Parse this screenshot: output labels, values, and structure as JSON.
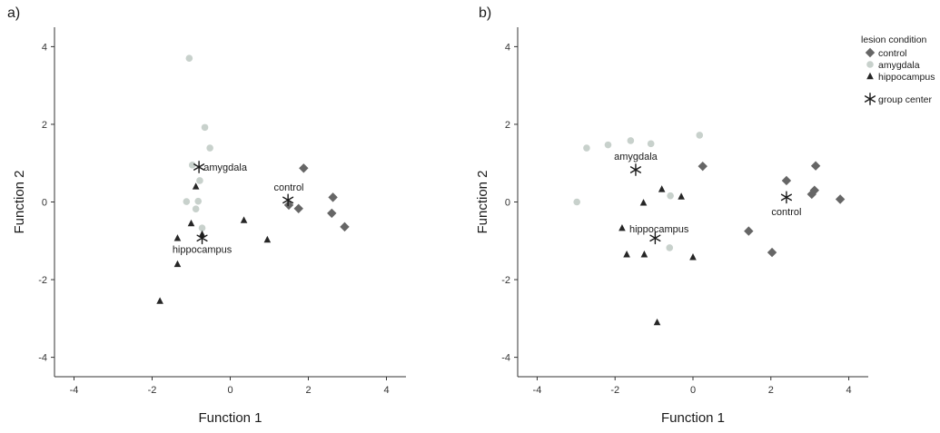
{
  "colors": {
    "control": "#666666",
    "amygdala": "#c8d1cc",
    "hippocampus": "#262626",
    "group_center": "#1a1a1a",
    "axis": "#333333"
  },
  "legend": {
    "title": "lesion condition",
    "items": [
      {
        "label": "control",
        "marker": "diamond",
        "color_key": "control"
      },
      {
        "label": "amygdala",
        "marker": "circle",
        "color_key": "amygdala"
      },
      {
        "label": "hippocampus",
        "marker": "triangle",
        "color_key": "hippocampus"
      },
      {
        "label": "group center",
        "marker": "star",
        "color_key": "group_center"
      }
    ],
    "placement": "right of panel b, top"
  },
  "chart_data": [
    {
      "panel_label": "a)",
      "type": "scatter",
      "xlabel": "Function 1",
      "ylabel": "Function 2",
      "xlim": [
        -4.5,
        4.5
      ],
      "ylim": [
        -4.5,
        4.5
      ],
      "xticks": [
        -4,
        -2,
        0,
        2,
        4
      ],
      "yticks": [
        -4,
        -2,
        0,
        2,
        4
      ],
      "grid": false,
      "series": [
        {
          "name": "control",
          "marker": "diamond",
          "points": [
            [
              1.88,
              0.87
            ],
            [
              2.63,
              0.12
            ],
            [
              1.5,
              -0.08
            ],
            [
              1.75,
              -0.17
            ],
            [
              2.6,
              -0.29
            ],
            [
              2.93,
              -0.64
            ]
          ]
        },
        {
          "name": "amygdala",
          "marker": "circle",
          "points": [
            [
              -1.05,
              3.7
            ],
            [
              -0.65,
              1.92
            ],
            [
              -0.52,
              1.39
            ],
            [
              -0.97,
              0.95
            ],
            [
              -0.78,
              0.55
            ],
            [
              -1.12,
              0.01
            ],
            [
              -0.82,
              0.02
            ],
            [
              -0.88,
              -0.18
            ],
            [
              -0.72,
              -0.67
            ]
          ]
        },
        {
          "name": "hippocampus",
          "marker": "triangle",
          "points": [
            [
              -0.88,
              0.4
            ],
            [
              -1.0,
              -0.55
            ],
            [
              0.35,
              -0.47
            ],
            [
              -0.72,
              -0.83
            ],
            [
              -1.35,
              -0.93
            ],
            [
              0.95,
              -0.97
            ],
            [
              -1.35,
              -1.6
            ],
            [
              -1.8,
              -2.55
            ]
          ]
        },
        {
          "name": "group center",
          "marker": "star",
          "points": [
            [
              -0.8,
              0.9
            ],
            [
              1.48,
              0.05
            ],
            [
              -0.72,
              -0.93
            ]
          ]
        }
      ],
      "annotations": [
        {
          "text": "amygdala",
          "x": -0.68,
          "y": 0.9,
          "anchor": "start"
        },
        {
          "text": "control",
          "x": 1.5,
          "y": 0.38,
          "anchor": "middle"
        },
        {
          "text": "hippocampus",
          "x": -0.72,
          "y": -1.22,
          "anchor": "middle"
        }
      ]
    },
    {
      "panel_label": "b)",
      "type": "scatter",
      "xlabel": "Function 1",
      "ylabel": "Function 2",
      "xlim": [
        -4.5,
        4.5
      ],
      "ylim": [
        -4.5,
        4.5
      ],
      "xticks": [
        -4,
        -2,
        0,
        2,
        4
      ],
      "yticks": [
        -4,
        -2,
        0,
        2,
        4
      ],
      "grid": false,
      "series": [
        {
          "name": "control",
          "marker": "diamond",
          "points": [
            [
              3.15,
              0.93
            ],
            [
              0.25,
              0.92
            ],
            [
              2.4,
              0.55
            ],
            [
              3.12,
              0.3
            ],
            [
              3.05,
              0.2
            ],
            [
              3.78,
              0.07
            ],
            [
              1.43,
              -0.75
            ],
            [
              2.03,
              -1.3
            ]
          ]
        },
        {
          "name": "amygdala",
          "marker": "circle",
          "points": [
            [
              0.17,
              1.72
            ],
            [
              -1.6,
              1.58
            ],
            [
              -1.08,
              1.5
            ],
            [
              -2.18,
              1.47
            ],
            [
              -2.73,
              1.39
            ],
            [
              -0.58,
              0.16
            ],
            [
              -2.98,
              0.0
            ],
            [
              -0.6,
              -1.18
            ]
          ]
        },
        {
          "name": "hippocampus",
          "marker": "triangle",
          "points": [
            [
              -0.8,
              0.33
            ],
            [
              -0.3,
              0.14
            ],
            [
              -1.27,
              -0.02
            ],
            [
              -1.82,
              -0.67
            ],
            [
              -1.7,
              -1.35
            ],
            [
              -1.25,
              -1.35
            ],
            [
              0.0,
              -1.42
            ],
            [
              -0.92,
              -3.1
            ]
          ]
        },
        {
          "name": "group center",
          "marker": "star",
          "points": [
            [
              -1.47,
              0.83
            ],
            [
              2.4,
              0.12
            ],
            [
              -0.97,
              -0.93
            ]
          ]
        }
      ],
      "annotations": [
        {
          "text": "amygdala",
          "x": -1.47,
          "y": 1.18,
          "anchor": "middle"
        },
        {
          "text": "control",
          "x": 2.4,
          "y": -0.25,
          "anchor": "middle"
        },
        {
          "text": "hippocampus",
          "x": -0.87,
          "y": -0.69,
          "anchor": "middle"
        }
      ]
    }
  ]
}
